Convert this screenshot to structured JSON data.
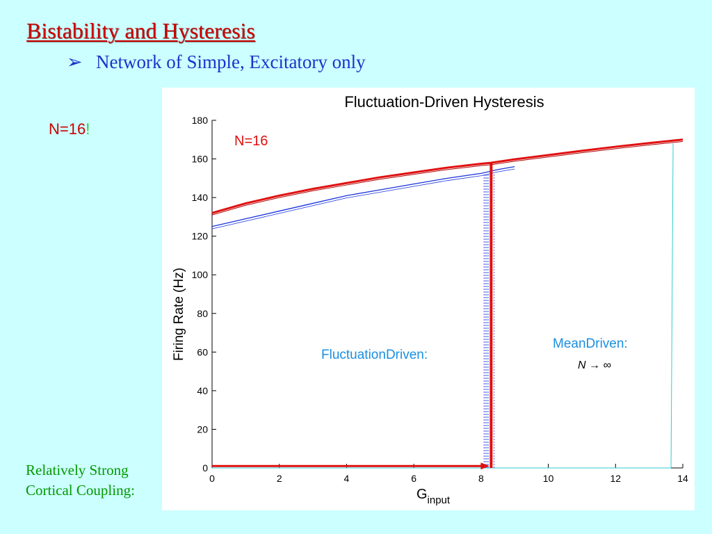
{
  "slide": {
    "title": "Bistability and Hysteresis",
    "bullet": "Network of Simple, Excitatory only",
    "bullet_marker": "➢",
    "side_label": "N=16",
    "side_label_bang": "!",
    "coupling_note": [
      "Relatively Strong",
      "Cortical Coupling:"
    ]
  },
  "colors": {
    "background": "#ccffff",
    "title": "#cc0000",
    "bullet": "#1a33cc",
    "coupling": "#009900",
    "red": "#e01010",
    "blue": "#1a33dd",
    "cyan": "#33cccc",
    "annotation_blue": "#1a8fe0"
  },
  "chart_data": {
    "type": "line",
    "title": "Fluctuation-Driven Hysteresis",
    "xlabel_main": "G",
    "xlabel_sub": "input",
    "ylabel": "Firing Rate (Hz)",
    "xlim": [
      0,
      14
    ],
    "ylim": [
      0,
      180
    ],
    "xticks": [
      0,
      2,
      4,
      6,
      8,
      10,
      12,
      14
    ],
    "yticks": [
      0,
      20,
      40,
      60,
      80,
      100,
      120,
      140,
      160,
      180
    ],
    "grid": false,
    "annotations": {
      "n_label": "N=16",
      "fluctuation": "FluctuationDriven:",
      "mean": "MeanDriven:",
      "limit": "N → ∞"
    },
    "series": [
      {
        "role": "red-upper",
        "color": "#e01010",
        "x": [
          0,
          1,
          2,
          3,
          4,
          5,
          6,
          7,
          8,
          8.3,
          9,
          10,
          11,
          12,
          13,
          14
        ],
        "y": [
          132,
          137,
          141,
          144.5,
          147.5,
          150.5,
          153,
          155.5,
          157.5,
          158,
          159.8,
          162,
          164.2,
          166.3,
          168.2,
          170
        ]
      },
      {
        "role": "blue-upper",
        "color": "#1a33dd",
        "x": [
          0,
          1,
          2,
          3,
          4,
          5,
          6,
          7,
          8,
          8.5,
          9
        ],
        "y": [
          125,
          129,
          133,
          137,
          141,
          144,
          147,
          150,
          152.5,
          154.5,
          156
        ]
      },
      {
        "role": "red-lower",
        "color": "#e01010",
        "x": [
          0,
          8.2
        ],
        "y": [
          1,
          1
        ]
      },
      {
        "role": "cyan-lower",
        "color": "#33cccc",
        "x": [
          0,
          13.65
        ],
        "y": [
          0,
          0
        ]
      }
    ],
    "red_jump_x": 8.3,
    "blue_jump_x": 8.15,
    "cyan_jump_x": 13.65
  }
}
